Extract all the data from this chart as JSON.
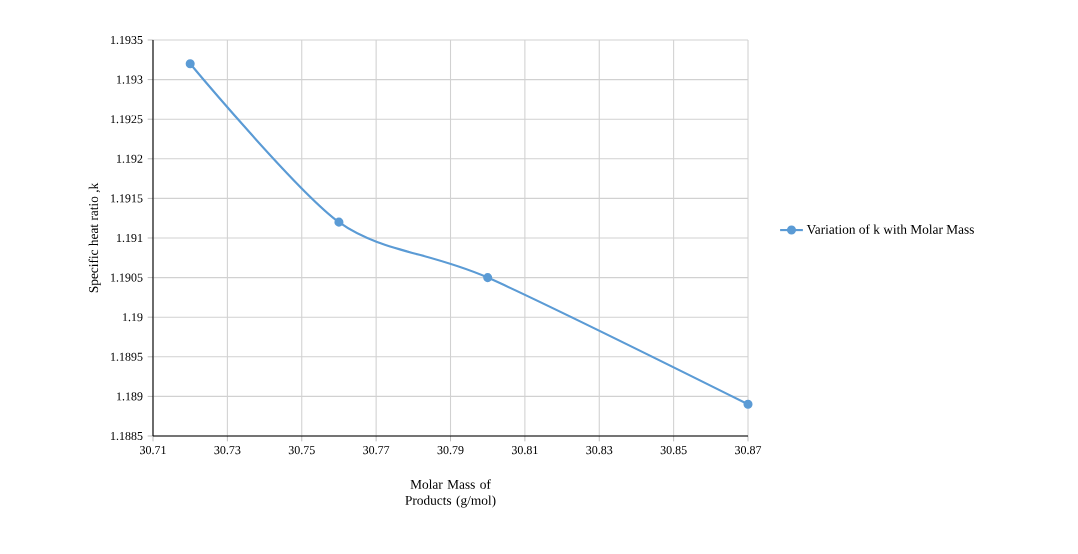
{
  "chart_data": {
    "type": "line",
    "xlabel": "Molar Mass of Products (g/mol)",
    "ylabel": "Specific heat ratio ,k",
    "x": [
      30.72,
      30.76,
      30.8,
      30.87
    ],
    "series": [
      {
        "name": "Variation of k with Molar Mass",
        "color": "#5b9bd5",
        "values": [
          1.1932,
          1.1912,
          1.1905,
          1.1889
        ]
      }
    ],
    "xlim": [
      30.71,
      30.87
    ],
    "xticks": [
      30.71,
      30.73,
      30.75,
      30.77,
      30.79,
      30.81,
      30.83,
      30.85,
      30.87
    ],
    "ylim": [
      1.1885,
      1.1935
    ],
    "yticks": [
      1.1885,
      1.189,
      1.1895,
      1.19,
      1.1905,
      1.191,
      1.1915,
      1.192,
      1.1925,
      1.193,
      1.1935
    ],
    "grid": true,
    "legend": "right",
    "marker": "circle",
    "line_style": "solid"
  }
}
